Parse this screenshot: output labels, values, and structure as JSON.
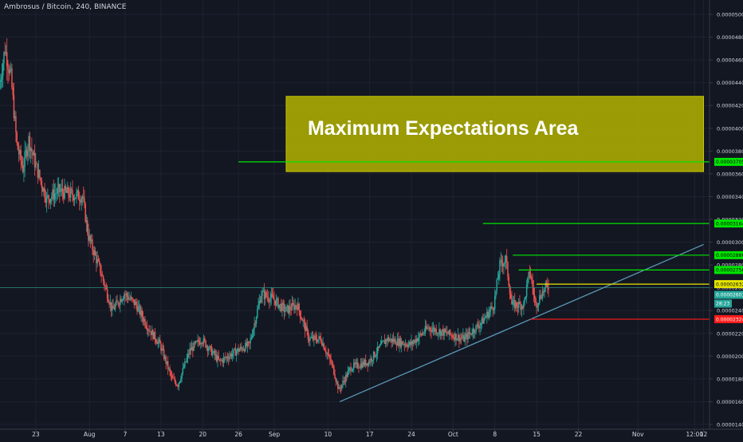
{
  "header": {
    "title": "Ambrosus / Bitcoin, 240, BINANCE"
  },
  "colors": {
    "background": "#131722",
    "grid": "#1e2230",
    "axis_text": "#d1d4dc",
    "candle_up": "#26a69a",
    "candle_down": "#ef5350",
    "zone_fill": "#b3b300",
    "green_line": "#00e600",
    "yellow_line": "#e6e600",
    "red_line": "#ff1a1a",
    "trend_line": "#5b9ab8",
    "price_line": "#2a8a7a"
  },
  "chart_data": {
    "type": "candlestick",
    "title": "Ambrosus / Bitcoin, 240, BINANCE",
    "ylim": [
      1.4e-05,
      5e-05
    ],
    "y_ticks": [
      "0.00005000",
      "0.00004800",
      "0.00004600",
      "0.00004400",
      "0.00004200",
      "0.00004000",
      "0.00003800",
      "0.00003600",
      "0.00003400",
      "0.00003200",
      "0.00003000",
      "0.00002800",
      "0.00002600",
      "0.00002400",
      "0.00002200",
      "0.00002000",
      "0.00001800",
      "0.00001600",
      "0.00001400"
    ],
    "x_ticks": [
      "23",
      "Aug",
      "7",
      "13",
      "20",
      "26",
      "Sep",
      "10",
      "17",
      "24",
      "Oct",
      "8",
      "15",
      "22",
      "Nov",
      "12:00",
      "12"
    ],
    "x_tick_dates": [
      "2018-07-23",
      "2018-08-01",
      "2018-08-07",
      "2018-08-13",
      "2018-08-20",
      "2018-08-26",
      "2018-09-01",
      "2018-09-10",
      "2018-09-17",
      "2018-09-24",
      "2018-10-01",
      "2018-10-08",
      "2018-10-15",
      "2018-10-22",
      "2018-11-01",
      "2018-11-10 12:00",
      "2018-11-12"
    ],
    "x_range": [
      "2018-07-17",
      "2018-11-13"
    ],
    "price_path": [
      [
        "2018-07-17",
        4.35e-05
      ],
      [
        "2018-07-18",
        4.7e-05
      ],
      [
        "2018-07-19",
        4.45e-05
      ],
      [
        "2018-07-20",
        3.85e-05
      ],
      [
        "2018-07-21",
        3.65e-05
      ],
      [
        "2018-07-22",
        3.9e-05
      ],
      [
        "2018-07-23",
        3.7e-05
      ],
      [
        "2018-07-25",
        3.38e-05
      ],
      [
        "2018-07-27",
        3.45e-05
      ],
      [
        "2018-07-29",
        3.42e-05
      ],
      [
        "2018-07-31",
        3.4e-05
      ],
      [
        "2018-08-01",
        3.05e-05
      ],
      [
        "2018-08-03",
        2.75e-05
      ],
      [
        "2018-08-05",
        2.4e-05
      ],
      [
        "2018-08-07",
        2.55e-05
      ],
      [
        "2018-08-09",
        2.45e-05
      ],
      [
        "2018-08-11",
        2.25e-05
      ],
      [
        "2018-08-13",
        2.1e-05
      ],
      [
        "2018-08-15",
        1.8e-05
      ],
      [
        "2018-08-16",
        1.75e-05
      ],
      [
        "2018-08-18",
        2.05e-05
      ],
      [
        "2018-08-20",
        2.15e-05
      ],
      [
        "2018-08-23",
        1.95e-05
      ],
      [
        "2018-08-26",
        2.05e-05
      ],
      [
        "2018-08-28",
        2.1e-05
      ],
      [
        "2018-08-30",
        2.55e-05
      ],
      [
        "2018-09-01",
        2.5e-05
      ],
      [
        "2018-09-03",
        2.4e-05
      ],
      [
        "2018-09-05",
        2.45e-05
      ],
      [
        "2018-09-07",
        2.15e-05
      ],
      [
        "2018-09-09",
        2.15e-05
      ],
      [
        "2018-09-11",
        1.9e-05
      ],
      [
        "2018-09-12",
        1.7e-05
      ],
      [
        "2018-09-14",
        1.9e-05
      ],
      [
        "2018-09-17",
        1.95e-05
      ],
      [
        "2018-09-20",
        2.15e-05
      ],
      [
        "2018-09-24",
        2.1e-05
      ],
      [
        "2018-09-27",
        2.25e-05
      ],
      [
        "2018-09-30",
        2.2e-05
      ],
      [
        "2018-10-03",
        2.15e-05
      ],
      [
        "2018-10-06",
        2.3e-05
      ],
      [
        "2018-10-08",
        2.45e-05
      ],
      [
        "2018-10-09",
        2.8e-05
      ],
      [
        "2018-10-10",
        2.85e-05
      ],
      [
        "2018-10-11",
        2.45e-05
      ],
      [
        "2018-10-13",
        2.45e-05
      ],
      [
        "2018-10-14",
        2.75e-05
      ],
      [
        "2018-10-15",
        2.45e-05
      ],
      [
        "2018-10-16",
        2.55e-05
      ],
      [
        "2018-10-17",
        2.62e-05
      ]
    ],
    "series_last_price": "0.00002601",
    "levels": [
      {
        "label": "0.00003705",
        "price": 3.705e-05,
        "color": "green",
        "from": "2018-08-26"
      },
      {
        "label": "0.00003164",
        "price": 3.164e-05,
        "color": "green",
        "from": "2018-10-06"
      },
      {
        "label": "0.00002886",
        "price": 2.886e-05,
        "color": "green",
        "from": "2018-10-11"
      },
      {
        "label": "0.00002756",
        "price": 2.756e-05,
        "color": "green",
        "from": "2018-10-12"
      },
      {
        "label": "0.00002632",
        "price": 2.632e-05,
        "color": "yellow",
        "from": "2018-10-15"
      },
      {
        "label": "0.00002324",
        "price": 2.324e-05,
        "color": "red",
        "from": "2018-10-14"
      }
    ],
    "countdown_label": "28:23",
    "trend_line": {
      "start": [
        "2018-09-12",
        1.6e-05
      ],
      "end": [
        "2018-11-12",
        2.98e-05
      ]
    },
    "zone": {
      "label": "Maximum Expectations Area",
      "from": "2018-09-03",
      "to": "2018-11-12",
      "price_top": 4.28e-05,
      "price_bottom": 3.62e-05
    }
  }
}
